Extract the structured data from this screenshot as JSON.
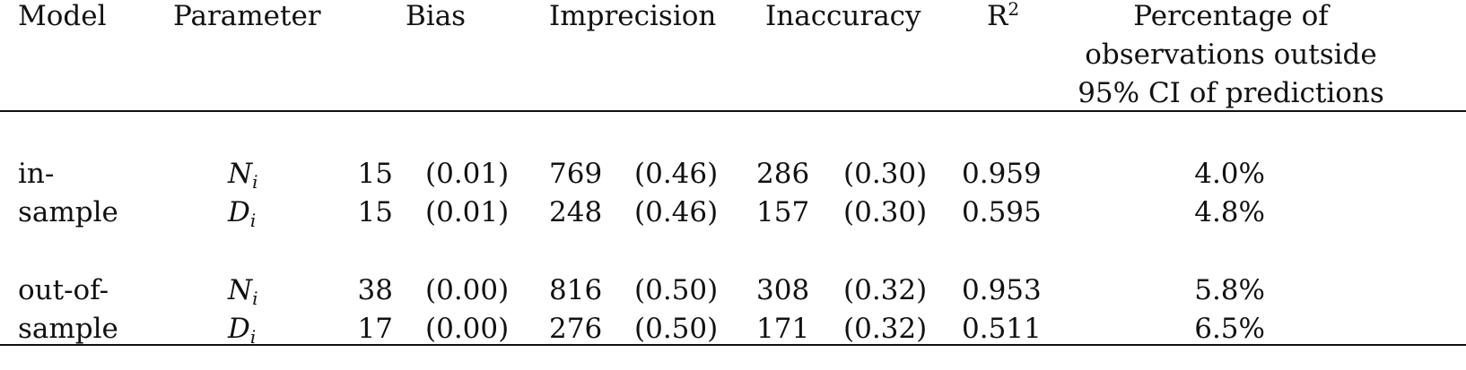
{
  "headers": {
    "model": "Model",
    "parameter": "Parameter",
    "bias": "Bias",
    "imprecision": "Imprecision",
    "inaccuracy": "Inaccuracy",
    "r2_base": "R",
    "r2_sup": "2",
    "pct_line1": "Percentage of",
    "pct_line2": "observations outside",
    "pct_line3": "95% CI of predictions"
  },
  "groups": [
    {
      "model_line1": "in-",
      "model_line2": "sample",
      "rows": [
        {
          "param_base": "N",
          "param_sub": "i",
          "bias": "15",
          "bias_p": "(0.01)",
          "imprecision": "769",
          "imprecision_p": "(0.46)",
          "inaccuracy": "286",
          "inaccuracy_p": "(0.30)",
          "r2": "0.959",
          "pct": "4.0%"
        },
        {
          "param_base": "D",
          "param_sub": "i",
          "bias": "15",
          "bias_p": "(0.01)",
          "imprecision": "248",
          "imprecision_p": "(0.46)",
          "inaccuracy": "157",
          "inaccuracy_p": "(0.30)",
          "r2": "0.595",
          "pct": "4.8%"
        }
      ]
    },
    {
      "model_line1": "out-of-",
      "model_line2": "sample",
      "rows": [
        {
          "param_base": "N",
          "param_sub": "i",
          "bias": "38",
          "bias_p": "(0.00)",
          "imprecision": "816",
          "imprecision_p": "(0.50)",
          "inaccuracy": "308",
          "inaccuracy_p": "(0.32)",
          "r2": "0.953",
          "pct": "5.8%"
        },
        {
          "param_base": "D",
          "param_sub": "i",
          "bias": "17",
          "bias_p": "(0.00)",
          "imprecision": "276",
          "imprecision_p": "(0.50)",
          "inaccuracy": "171",
          "inaccuracy_p": "(0.32)",
          "r2": "0.511",
          "pct": "6.5%"
        }
      ]
    }
  ]
}
